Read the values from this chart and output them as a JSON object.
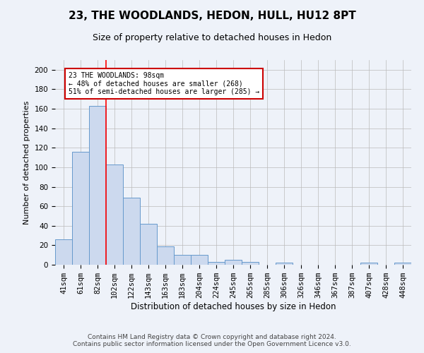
{
  "title": "23, THE WOODLANDS, HEDON, HULL, HU12 8PT",
  "subtitle": "Size of property relative to detached houses in Hedon",
  "xlabel": "Distribution of detached houses by size in Hedon",
  "ylabel": "Number of detached properties",
  "categories": [
    "41sqm",
    "61sqm",
    "82sqm",
    "102sqm",
    "122sqm",
    "143sqm",
    "163sqm",
    "183sqm",
    "204sqm",
    "224sqm",
    "245sqm",
    "265sqm",
    "285sqm",
    "306sqm",
    "326sqm",
    "346sqm",
    "367sqm",
    "387sqm",
    "407sqm",
    "428sqm",
    "448sqm"
  ],
  "values": [
    26,
    116,
    163,
    103,
    69,
    42,
    19,
    10,
    10,
    3,
    5,
    3,
    0,
    2,
    0,
    0,
    0,
    0,
    2,
    0,
    2
  ],
  "bar_color": "#ccd9ee",
  "bar_edge_color": "#6699cc",
  "grid_color": "#bbbbbb",
  "annotation_box_text": "23 THE WOODLANDS: 98sqm\n← 48% of detached houses are smaller (268)\n51% of semi-detached houses are larger (285) →",
  "annotation_box_color": "#ffffff",
  "annotation_box_edge_color": "#cc0000",
  "red_line_x": 2.5,
  "ylim": [
    0,
    210
  ],
  "yticks": [
    0,
    20,
    40,
    60,
    80,
    100,
    120,
    140,
    160,
    180,
    200
  ],
  "footer_line1": "Contains HM Land Registry data © Crown copyright and database right 2024.",
  "footer_line2": "Contains public sector information licensed under the Open Government Licence v3.0.",
  "background_color": "#eef2f9",
  "title_fontsize": 11,
  "subtitle_fontsize": 9,
  "ylabel_fontsize": 8,
  "xlabel_fontsize": 8.5,
  "tick_fontsize": 7.5,
  "footer_fontsize": 6.5
}
